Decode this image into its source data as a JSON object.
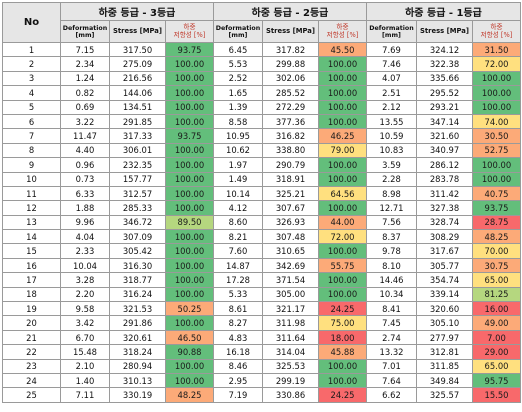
{
  "header": {
    "no_label": "No",
    "groups": [
      "하중 등급 - 3등급",
      "하중 등급 - 2등급",
      "하중 등급 - 1등급"
    ],
    "deformation_label": [
      "Deformation",
      "[mm]"
    ],
    "stress_label": "Stress [MPa]",
    "reduction_label": [
      "하중",
      "저항성 [%]"
    ]
  },
  "colors": {
    "green": "#63be7b",
    "light_green": "#b5d77f",
    "yellow": "#ffe07f",
    "orange": "#fcaa78",
    "red": "#f8696b"
  },
  "rows": [
    {
      "no": "1",
      "g3": [
        "7.15",
        "317.50",
        "93.75"
      ],
      "g2": [
        "6.45",
        "317.82",
        "45.50"
      ],
      "g1": [
        "7.69",
        "324.12",
        "31.50"
      ]
    },
    {
      "no": "2",
      "g3": [
        "2.34",
        "275.09",
        "100.00"
      ],
      "g2": [
        "5.53",
        "299.88",
        "100.00"
      ],
      "g1": [
        "7.46",
        "322.38",
        "72.00"
      ]
    },
    {
      "no": "3",
      "g3": [
        "1.24",
        "216.56",
        "100.00"
      ],
      "g2": [
        "2.52",
        "302.06",
        "100.00"
      ],
      "g1": [
        "4.07",
        "335.66",
        "100.00"
      ]
    },
    {
      "no": "4",
      "g3": [
        "0.82",
        "144.06",
        "100.00"
      ],
      "g2": [
        "1.65",
        "285.52",
        "100.00"
      ],
      "g1": [
        "2.51",
        "295.52",
        "100.00"
      ]
    },
    {
      "no": "5",
      "g3": [
        "0.69",
        "134.51",
        "100.00"
      ],
      "g2": [
        "1.39",
        "272.29",
        "100.00"
      ],
      "g1": [
        "2.12",
        "293.21",
        "100.00"
      ]
    },
    {
      "no": "6",
      "g3": [
        "3.22",
        "291.85",
        "100.00"
      ],
      "g2": [
        "8.58",
        "377.36",
        "100.00"
      ],
      "g1": [
        "13.55",
        "347.14",
        "74.00"
      ]
    },
    {
      "no": "7",
      "g3": [
        "11.47",
        "317.33",
        "93.75"
      ],
      "g2": [
        "10.95",
        "316.82",
        "46.25"
      ],
      "g1": [
        "10.59",
        "321.60",
        "30.50"
      ]
    },
    {
      "no": "8",
      "g3": [
        "4.40",
        "306.01",
        "100.00"
      ],
      "g2": [
        "10.62",
        "338.80",
        "79.00"
      ],
      "g1": [
        "10.83",
        "340.97",
        "52.75"
      ]
    },
    {
      "no": "9",
      "g3": [
        "0.96",
        "232.35",
        "100.00"
      ],
      "g2": [
        "1.97",
        "290.79",
        "100.00"
      ],
      "g1": [
        "3.59",
        "286.12",
        "100.00"
      ]
    },
    {
      "no": "10",
      "g3": [
        "0.73",
        "157.77",
        "100.00"
      ],
      "g2": [
        "1.49",
        "318.91",
        "100.00"
      ],
      "g1": [
        "2.28",
        "283.78",
        "100.00"
      ]
    },
    {
      "no": "11",
      "g3": [
        "6.33",
        "312.57",
        "100.00"
      ],
      "g2": [
        "10.14",
        "325.21",
        "64.56"
      ],
      "g1": [
        "8.98",
        "311.42",
        "40.75"
      ]
    },
    {
      "no": "12",
      "g3": [
        "1.88",
        "285.33",
        "100.00"
      ],
      "g2": [
        "4.12",
        "307.67",
        "100.00"
      ],
      "g1": [
        "12.71",
        "327.38",
        "93.75"
      ]
    },
    {
      "no": "13",
      "g3": [
        "9.96",
        "346.72",
        "89.50"
      ],
      "g2": [
        "8.60",
        "326.93",
        "44.00"
      ],
      "g1": [
        "7.56",
        "328.74",
        "28.75"
      ]
    },
    {
      "no": "14",
      "g3": [
        "4.04",
        "307.09",
        "100.00"
      ],
      "g2": [
        "8.21",
        "307.48",
        "72.00"
      ],
      "g1": [
        "8.37",
        "308.29",
        "48.25"
      ]
    },
    {
      "no": "15",
      "g3": [
        "2.33",
        "305.42",
        "100.00"
      ],
      "g2": [
        "7.60",
        "310.65",
        "100.00"
      ],
      "g1": [
        "9.78",
        "317.67",
        "70.00"
      ]
    },
    {
      "no": "16",
      "g3": [
        "10.04",
        "316.30",
        "100.00"
      ],
      "g2": [
        "14.87",
        "342.69",
        "55.75"
      ],
      "g1": [
        "8.10",
        "305.77",
        "30.75"
      ]
    },
    {
      "no": "17",
      "g3": [
        "3.28",
        "318.77",
        "100.00"
      ],
      "g2": [
        "17.28",
        "371.54",
        "100.00"
      ],
      "g1": [
        "14.46",
        "354.74",
        "65.00"
      ]
    },
    {
      "no": "18",
      "g3": [
        "2.20",
        "316.24",
        "100.00"
      ],
      "g2": [
        "5.33",
        "305.00",
        "100.00"
      ],
      "g1": [
        "10.34",
        "339.14",
        "81.25"
      ]
    },
    {
      "no": "19",
      "g3": [
        "9.58",
        "321.53",
        "50.25"
      ],
      "g2": [
        "8.61",
        "321.17",
        "24.25"
      ],
      "g1": [
        "8.41",
        "320.60",
        "16.00"
      ]
    },
    {
      "no": "20",
      "g3": [
        "3.42",
        "291.86",
        "100.00"
      ],
      "g2": [
        "8.27",
        "311.98",
        "75.00"
      ],
      "g1": [
        "7.45",
        "305.10",
        "49.00"
      ]
    },
    {
      "no": "21",
      "g3": [
        "6.70",
        "320.61",
        "46.50"
      ],
      "g2": [
        "4.83",
        "311.64",
        "18.00"
      ],
      "g1": [
        "2.74",
        "277.97",
        "7.00"
      ]
    },
    {
      "no": "22",
      "g3": [
        "15.48",
        "318.24",
        "90.88"
      ],
      "g2": [
        "16.18",
        "314.04",
        "45.88"
      ],
      "g1": [
        "13.32",
        "312.81",
        "29.00"
      ]
    },
    {
      "no": "23",
      "g3": [
        "2.10",
        "280.94",
        "100.00"
      ],
      "g2": [
        "8.46",
        "325.53",
        "100.00"
      ],
      "g1": [
        "7.01",
        "311.85",
        "65.00"
      ]
    },
    {
      "no": "24",
      "g3": [
        "1.40",
        "310.13",
        "100.00"
      ],
      "g2": [
        "2.95",
        "299.19",
        "100.00"
      ],
      "g1": [
        "7.64",
        "349.84",
        "95.75"
      ]
    },
    {
      "no": "25",
      "g3": [
        "7.11",
        "330.19",
        "48.25"
      ],
      "g2": [
        "7.19",
        "330.86",
        "24.25"
      ],
      "g1": [
        "6.62",
        "325.57",
        "15.50"
      ]
    }
  ]
}
